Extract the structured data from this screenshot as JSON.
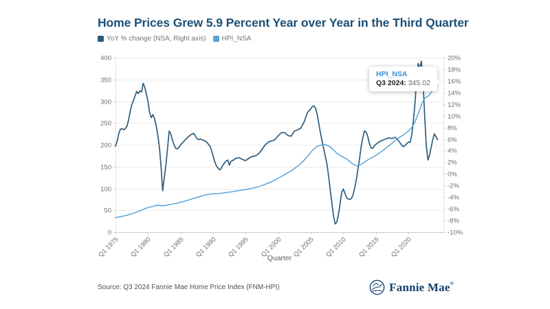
{
  "title": {
    "text": "Home Prices Grew 5.9 Percent Year over Year in the Third Quarter",
    "color": "#1c5077"
  },
  "legend": {
    "items": [
      {
        "label": "YoY % change (NSA, Right axis)",
        "color": "#2d5c7c"
      },
      {
        "label": "HPI_NSA",
        "color": "#58a4da"
      }
    ]
  },
  "tooltip": {
    "series": "HPI_NSA",
    "series_color": "#3e8ed6",
    "period": "Q3 2024:",
    "value": "345.02"
  },
  "footer": {
    "source": "Source: Q3 2024 Fannie Mae Home Price Index (FNM-HPI)",
    "logo_text": "Fannie Mae",
    "logo_mark": "®",
    "logo_color": "#11406e"
  },
  "chart_data": {
    "type": "line",
    "xlabel": "Quarter",
    "x_unit": "decimal_year (Q1=.0, Q2=.25, Q3=.5, Q4=.75)",
    "grid": "horizontal",
    "legend_position": "top-left",
    "axes": {
      "left": {
        "title": "HPI_NSA index level",
        "min": 0,
        "max": 400,
        "ticks": [
          0,
          50,
          100,
          150,
          200,
          250,
          300,
          350,
          400
        ]
      },
      "right": {
        "title": "YoY % change (NSA)",
        "min": -10,
        "max": 20,
        "suffix": "%",
        "ticks": [
          -10,
          -8,
          -6,
          -4,
          -2,
          0,
          2,
          4,
          6,
          8,
          10,
          12,
          14,
          16,
          18,
          20
        ]
      },
      "x": {
        "range": [
          1975.0,
          2024.5
        ],
        "ticks": [
          {
            "year": 1975,
            "label": "Q1 1975"
          },
          {
            "year": 1980,
            "label": "Q1 1980"
          },
          {
            "year": 1985,
            "label": "Q1 1985"
          },
          {
            "year": 1990,
            "label": "Q1 1990"
          },
          {
            "year": 1995,
            "label": "Q1 1995"
          },
          {
            "year": 2000,
            "label": "Q1 2000"
          },
          {
            "year": 2005,
            "label": "Q1 2005"
          },
          {
            "year": 2010,
            "label": "Q1 2010"
          },
          {
            "year": 2015,
            "label": "Q1 2015"
          },
          {
            "year": 2020,
            "label": "Q1 2020"
          }
        ]
      }
    },
    "highlight": {
      "series": "HPI_NSA",
      "period": "Q3 2024",
      "value": 345.02
    },
    "series": [
      {
        "name": "YoY % change (NSA, Right axis)",
        "axis": "right",
        "color": "#2d5c7c",
        "points": [
          [
            1975.0,
            4.8
          ],
          [
            1975.25,
            5.6
          ],
          [
            1975.5,
            6.9
          ],
          [
            1975.75,
            7.7
          ],
          [
            1976.0,
            7.8
          ],
          [
            1976.25,
            7.6
          ],
          [
            1976.5,
            7.8
          ],
          [
            1976.75,
            8.2
          ],
          [
            1977.0,
            9.2
          ],
          [
            1977.25,
            10.7
          ],
          [
            1977.5,
            11.9
          ],
          [
            1977.75,
            12.6
          ],
          [
            1978.0,
            13.4
          ],
          [
            1978.25,
            14.2
          ],
          [
            1978.5,
            13.8
          ],
          [
            1978.75,
            14.3
          ],
          [
            1979.0,
            14.1
          ],
          [
            1979.25,
            15.6
          ],
          [
            1979.5,
            14.9
          ],
          [
            1979.75,
            13.7
          ],
          [
            1980.0,
            12.4
          ],
          [
            1980.25,
            10.5
          ],
          [
            1980.5,
            9.7
          ],
          [
            1980.75,
            10.2
          ],
          [
            1981.0,
            9.5
          ],
          [
            1981.25,
            8.3
          ],
          [
            1981.5,
            6.7
          ],
          [
            1981.75,
            4.6
          ],
          [
            1982.0,
            1.2
          ],
          [
            1982.25,
            -2.9
          ],
          [
            1982.5,
            -0.6
          ],
          [
            1982.75,
            1.6
          ],
          [
            1983.0,
            4.4
          ],
          [
            1983.25,
            7.4
          ],
          [
            1983.5,
            6.9
          ],
          [
            1983.75,
            5.8
          ],
          [
            1984.0,
            5.0
          ],
          [
            1984.25,
            4.4
          ],
          [
            1984.5,
            4.3
          ],
          [
            1984.75,
            4.6
          ],
          [
            1985.0,
            5.0
          ],
          [
            1985.5,
            5.6
          ],
          [
            1986.0,
            6.2
          ],
          [
            1986.5,
            6.7
          ],
          [
            1987.0,
            7.0
          ],
          [
            1987.25,
            6.6
          ],
          [
            1987.5,
            6.1
          ],
          [
            1987.75,
            5.9
          ],
          [
            1988.0,
            6.0
          ],
          [
            1988.5,
            5.8
          ],
          [
            1989.0,
            5.5
          ],
          [
            1989.5,
            4.8
          ],
          [
            1989.75,
            4.1
          ],
          [
            1990.0,
            3.1
          ],
          [
            1990.25,
            2.1
          ],
          [
            1990.5,
            1.4
          ],
          [
            1990.75,
            1.0
          ],
          [
            1991.0,
            0.7
          ],
          [
            1991.25,
            1.0
          ],
          [
            1991.5,
            1.5
          ],
          [
            1991.75,
            1.9
          ],
          [
            1992.0,
            2.2
          ],
          [
            1992.25,
            2.4
          ],
          [
            1992.5,
            1.5
          ],
          [
            1992.75,
            2.2
          ],
          [
            1993.0,
            2.3
          ],
          [
            1993.5,
            2.7
          ],
          [
            1994.0,
            2.8
          ],
          [
            1994.5,
            2.5
          ],
          [
            1995.0,
            2.3
          ],
          [
            1995.5,
            2.7
          ],
          [
            1996.0,
            3.0
          ],
          [
            1996.5,
            3.1
          ],
          [
            1997.0,
            3.5
          ],
          [
            1997.5,
            4.2
          ],
          [
            1998.0,
            5.0
          ],
          [
            1998.5,
            5.5
          ],
          [
            1999.0,
            5.7
          ],
          [
            1999.5,
            5.9
          ],
          [
            2000.0,
            6.6
          ],
          [
            2000.5,
            7.1
          ],
          [
            2001.0,
            7.1
          ],
          [
            2001.5,
            6.6
          ],
          [
            2002.0,
            6.5
          ],
          [
            2002.5,
            7.4
          ],
          [
            2003.0,
            7.6
          ],
          [
            2003.5,
            7.9
          ],
          [
            2004.0,
            9.0
          ],
          [
            2004.5,
            10.6
          ],
          [
            2005.0,
            11.2
          ],
          [
            2005.25,
            11.6
          ],
          [
            2005.5,
            11.7
          ],
          [
            2005.75,
            11.3
          ],
          [
            2006.0,
            10.2
          ],
          [
            2006.25,
            8.6
          ],
          [
            2006.5,
            7.0
          ],
          [
            2006.75,
            5.6
          ],
          [
            2007.0,
            4.3
          ],
          [
            2007.25,
            3.0
          ],
          [
            2007.5,
            1.6
          ],
          [
            2007.75,
            -0.4
          ],
          [
            2008.0,
            -2.8
          ],
          [
            2008.25,
            -5.1
          ],
          [
            2008.5,
            -7.2
          ],
          [
            2008.75,
            -8.6
          ],
          [
            2009.0,
            -8.3
          ],
          [
            2009.25,
            -7.0
          ],
          [
            2009.5,
            -5.2
          ],
          [
            2009.75,
            -3.2
          ],
          [
            2010.0,
            -2.6
          ],
          [
            2010.25,
            -3.3
          ],
          [
            2010.5,
            -4.1
          ],
          [
            2010.75,
            -4.3
          ],
          [
            2011.0,
            -4.4
          ],
          [
            2011.25,
            -4.2
          ],
          [
            2011.5,
            -3.6
          ],
          [
            2011.75,
            -2.4
          ],
          [
            2012.0,
            -1.0
          ],
          [
            2012.25,
            0.8
          ],
          [
            2012.5,
            2.6
          ],
          [
            2012.75,
            4.8
          ],
          [
            2013.0,
            6.2
          ],
          [
            2013.25,
            7.4
          ],
          [
            2013.5,
            7.2
          ],
          [
            2013.75,
            6.5
          ],
          [
            2014.0,
            5.3
          ],
          [
            2014.25,
            4.5
          ],
          [
            2014.5,
            4.4
          ],
          [
            2014.75,
            4.8
          ],
          [
            2015.0,
            5.1
          ],
          [
            2015.5,
            5.5
          ],
          [
            2016.0,
            5.8
          ],
          [
            2016.5,
            6.0
          ],
          [
            2017.0,
            6.2
          ],
          [
            2017.5,
            6.1
          ],
          [
            2018.0,
            6.3
          ],
          [
            2018.5,
            5.7
          ],
          [
            2019.0,
            4.9
          ],
          [
            2019.25,
            4.7
          ],
          [
            2019.5,
            4.9
          ],
          [
            2019.75,
            5.2
          ],
          [
            2020.0,
            5.5
          ],
          [
            2020.25,
            5.4
          ],
          [
            2020.5,
            6.5
          ],
          [
            2020.75,
            8.9
          ],
          [
            2021.0,
            12.0
          ],
          [
            2021.25,
            16.0
          ],
          [
            2021.5,
            19.0
          ],
          [
            2021.75,
            18.1
          ],
          [
            2022.0,
            19.4
          ],
          [
            2022.25,
            16.0
          ],
          [
            2022.5,
            10.0
          ],
          [
            2022.75,
            5.0
          ],
          [
            2023.0,
            2.4
          ],
          [
            2023.25,
            3.2
          ],
          [
            2023.5,
            4.6
          ],
          [
            2023.75,
            5.9
          ],
          [
            2024.0,
            6.9
          ],
          [
            2024.25,
            6.4
          ],
          [
            2024.5,
            5.9
          ]
        ]
      },
      {
        "name": "HPI_NSA",
        "axis": "left",
        "color": "#58a4da",
        "points": [
          [
            1975.0,
            33.6
          ],
          [
            1975.5,
            34.5
          ],
          [
            1976.0,
            36.0
          ],
          [
            1976.5,
            37.6
          ],
          [
            1977.0,
            39.6
          ],
          [
            1977.5,
            42.1
          ],
          [
            1978.0,
            44.6
          ],
          [
            1978.5,
            47.5
          ],
          [
            1979.0,
            50.5
          ],
          [
            1979.5,
            53.5
          ],
          [
            1980.0,
            56.3
          ],
          [
            1980.5,
            58.0
          ],
          [
            1981.0,
            60.2
          ],
          [
            1981.5,
            61.2
          ],
          [
            1982.0,
            60.9
          ],
          [
            1982.25,
            60.3
          ],
          [
            1982.5,
            60.6
          ],
          [
            1983.0,
            62.0
          ],
          [
            1983.5,
            63.5
          ],
          [
            1984.0,
            65.1
          ],
          [
            1984.5,
            66.6
          ],
          [
            1985.0,
            68.3
          ],
          [
            1985.5,
            70.2
          ],
          [
            1986.0,
            72.5
          ],
          [
            1986.5,
            74.9
          ],
          [
            1987.0,
            77.3
          ],
          [
            1987.5,
            79.6
          ],
          [
            1988.0,
            81.8
          ],
          [
            1988.5,
            83.9
          ],
          [
            1989.0,
            85.8
          ],
          [
            1989.5,
            87.2
          ],
          [
            1990.0,
            87.9
          ],
          [
            1990.5,
            88.3
          ],
          [
            1991.0,
            88.7
          ],
          [
            1991.5,
            89.6
          ],
          [
            1992.0,
            90.7
          ],
          [
            1992.5,
            91.7
          ],
          [
            1993.0,
            92.8
          ],
          [
            1993.5,
            94.1
          ],
          [
            1994.0,
            95.3
          ],
          [
            1994.5,
            96.5
          ],
          [
            1995.0,
            97.6
          ],
          [
            1995.5,
            99.0
          ],
          [
            1996.0,
            100.5
          ],
          [
            1996.5,
            102.2
          ],
          [
            1997.0,
            104.3
          ],
          [
            1997.5,
            106.8
          ],
          [
            1998.0,
            109.7
          ],
          [
            1998.5,
            112.6
          ],
          [
            1999.0,
            115.8
          ],
          [
            1999.5,
            119.3
          ],
          [
            2000.0,
            123.3
          ],
          [
            2000.5,
            127.6
          ],
          [
            2001.0,
            132.0
          ],
          [
            2001.5,
            136.3
          ],
          [
            2002.0,
            140.7
          ],
          [
            2002.5,
            145.9
          ],
          [
            2003.0,
            151.4
          ],
          [
            2003.5,
            157.5
          ],
          [
            2004.0,
            165.0
          ],
          [
            2004.5,
            173.9
          ],
          [
            2005.0,
            183.0
          ],
          [
            2005.5,
            191.0
          ],
          [
            2006.0,
            196.5
          ],
          [
            2006.5,
            199.4
          ],
          [
            2007.0,
            200.3
          ],
          [
            2007.25,
            200.6
          ],
          [
            2007.5,
            199.5
          ],
          [
            2008.0,
            195.5
          ],
          [
            2008.5,
            188.5
          ],
          [
            2009.0,
            181.0
          ],
          [
            2009.5,
            176.0
          ],
          [
            2010.0,
            172.0
          ],
          [
            2010.5,
            168.0
          ],
          [
            2011.0,
            161.5
          ],
          [
            2011.5,
            155.5
          ],
          [
            2012.0,
            152.5
          ],
          [
            2012.25,
            152.0
          ],
          [
            2012.5,
            153.5
          ],
          [
            2013.0,
            157.5
          ],
          [
            2013.5,
            163.0
          ],
          [
            2014.0,
            167.5
          ],
          [
            2014.5,
            171.5
          ],
          [
            2015.0,
            176.0
          ],
          [
            2015.5,
            181.0
          ],
          [
            2016.0,
            186.5
          ],
          [
            2016.5,
            192.0
          ],
          [
            2017.0,
            198.0
          ],
          [
            2017.5,
            204.0
          ],
          [
            2018.0,
            210.5
          ],
          [
            2018.5,
            216.0
          ],
          [
            2019.0,
            220.5
          ],
          [
            2019.5,
            226.0
          ],
          [
            2020.0,
            231.5
          ],
          [
            2020.5,
            239.0
          ],
          [
            2021.0,
            252.0
          ],
          [
            2021.5,
            271.0
          ],
          [
            2022.0,
            291.5
          ],
          [
            2022.25,
            300.0
          ],
          [
            2022.5,
            306.5
          ],
          [
            2022.75,
            309.5
          ],
          [
            2023.0,
            311.5
          ],
          [
            2023.25,
            315.0
          ],
          [
            2023.5,
            320.5
          ],
          [
            2023.75,
            325.5
          ],
          [
            2024.0,
            331.5
          ],
          [
            2024.25,
            338.5
          ],
          [
            2024.5,
            345.02
          ]
        ]
      }
    ]
  }
}
